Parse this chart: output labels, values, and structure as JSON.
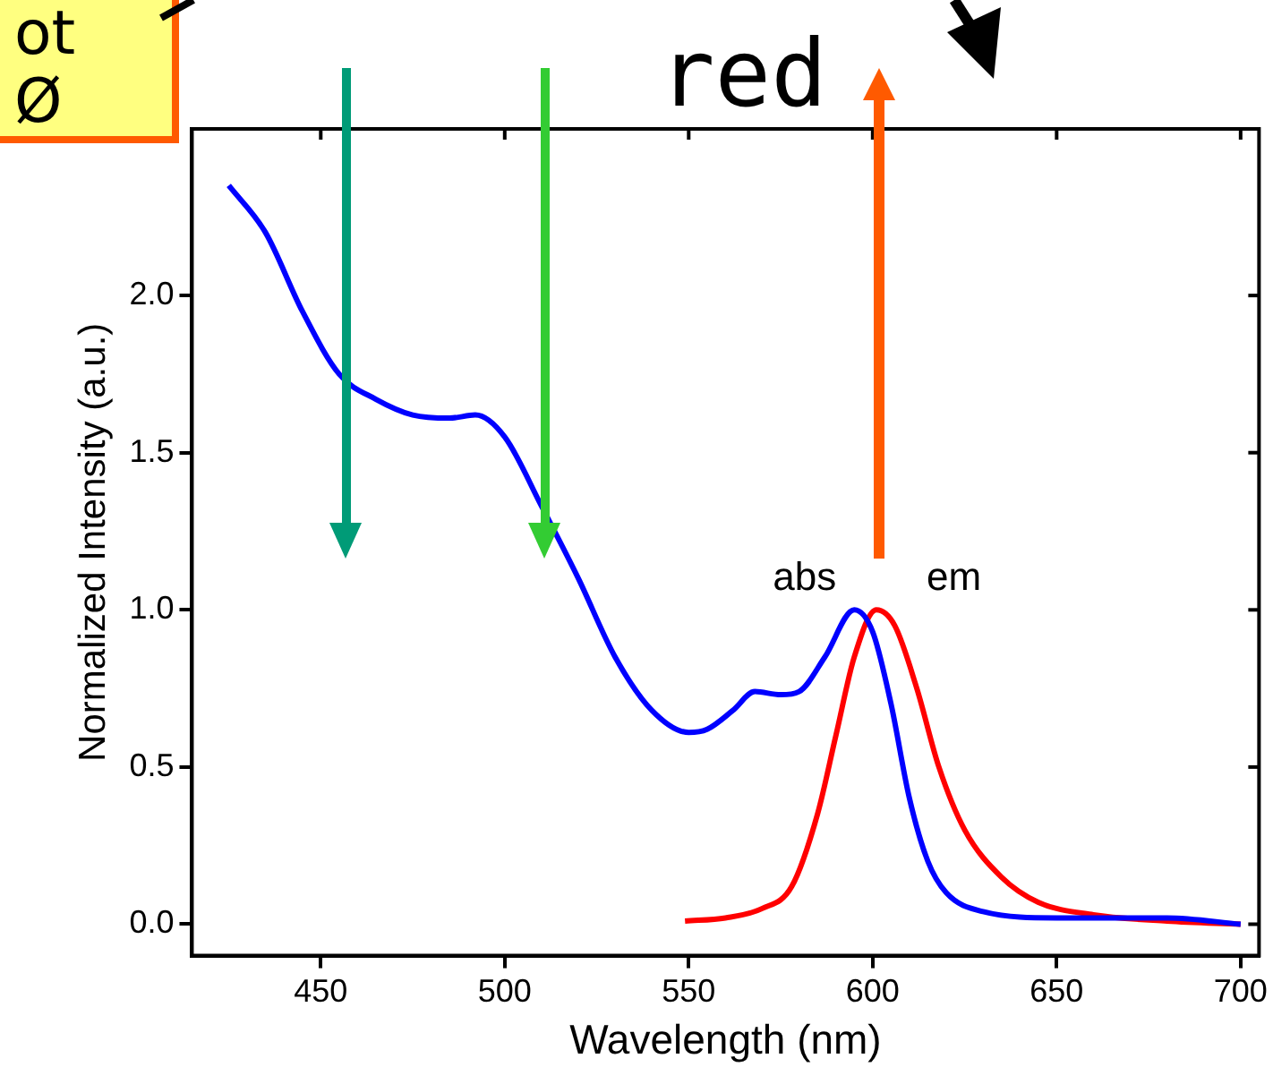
{
  "chart_data": {
    "type": "line",
    "xlabel": "Wavelength (nm)",
    "ylabel": "Normalized Intensity (a.u.)",
    "annotations": [
      "red",
      "ot",
      "Ø"
    ],
    "xlim": [
      415,
      705
    ],
    "xticks": [
      450,
      500,
      550,
      600,
      650,
      700
    ],
    "ylim": [
      -0.1,
      2.53
    ],
    "yticks": [
      {
        "value": 0,
        "label": "0.0"
      },
      0.5,
      {
        "value": 1,
        "label": "1.0"
      },
      1.5,
      {
        "value": 2,
        "label": "2.0"
      }
    ],
    "grid": false,
    "legend": false,
    "marker": "none",
    "line_style": "solid",
    "series": [
      {
        "name": "abs",
        "color": "#0000ff",
        "x": [
          425,
          435,
          445,
          455,
          465,
          475,
          485,
          492,
          500,
          510,
          520,
          530,
          540,
          550,
          555,
          562,
          568,
          575,
          580,
          587,
          595,
          600,
          605,
          610,
          615,
          620,
          630,
          650,
          680,
          700
        ],
        "values": [
          2.35,
          2.2,
          1.95,
          1.75,
          1.67,
          1.62,
          1.61,
          1.62,
          1.55,
          1.33,
          1.1,
          0.85,
          0.68,
          0.61,
          0.62,
          0.68,
          0.74,
          0.73,
          0.74,
          0.85,
          1.0,
          0.93,
          0.7,
          0.4,
          0.2,
          0.1,
          0.04,
          0.02,
          0.02,
          0.0
        ]
      },
      {
        "name": "em",
        "color": "#ff0000",
        "x": [
          549,
          560,
          570,
          578,
          585,
          590,
          595,
          601,
          606,
          612,
          618,
          625,
          635,
          645,
          660,
          680,
          700
        ],
        "values": [
          0.01,
          0.02,
          0.05,
          0.12,
          0.35,
          0.6,
          0.85,
          1.0,
          0.95,
          0.75,
          0.5,
          0.3,
          0.15,
          0.07,
          0.03,
          0.01,
          0.0
        ]
      }
    ]
  }
}
